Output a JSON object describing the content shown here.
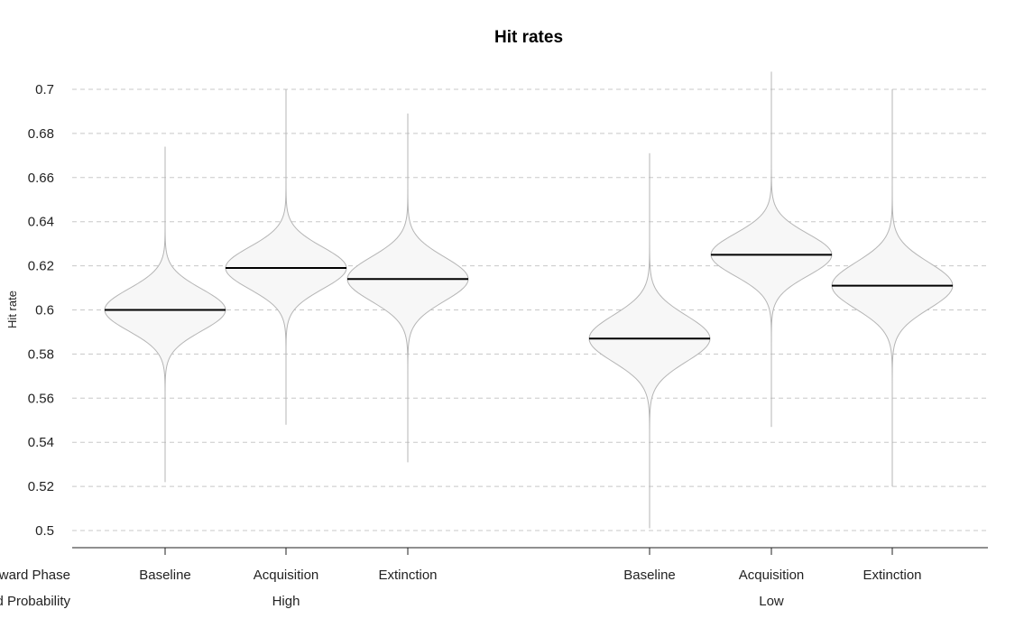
{
  "chart_data": {
    "type": "violin",
    "title": "Hit rates",
    "ylabel": "Hit rate",
    "ylim": [
      0.5,
      0.7
    ],
    "yticks": [
      0.5,
      0.52,
      0.54,
      0.56,
      0.58,
      0.6,
      0.62,
      0.64,
      0.66,
      0.68,
      0.7
    ],
    "ytick_labels": [
      "0.5",
      "0.52",
      "0.54",
      "0.56",
      "0.58",
      "0.6",
      "0.62",
      "0.64",
      "0.66",
      "0.68",
      "0.7"
    ],
    "grid": true,
    "factor_labels": [
      "Reward Phase",
      "Reward Probability"
    ],
    "groups": [
      {
        "label": "High",
        "violins": [
          {
            "label": "Baseline",
            "median": 0.6,
            "min": 0.522,
            "max": 0.674,
            "spread": 0.0095
          },
          {
            "label": "Acquisition",
            "median": 0.619,
            "min": 0.548,
            "max": 0.7,
            "spread": 0.0095
          },
          {
            "label": "Extinction",
            "median": 0.614,
            "min": 0.531,
            "max": 0.689,
            "spread": 0.01
          }
        ]
      },
      {
        "label": "Low",
        "violins": [
          {
            "label": "Baseline",
            "median": 0.587,
            "min": 0.501,
            "max": 0.671,
            "spread": 0.0105
          },
          {
            "label": "Acquisition",
            "median": 0.625,
            "min": 0.547,
            "max": 0.708,
            "spread": 0.0095
          },
          {
            "label": "Extinction",
            "median": 0.611,
            "min": 0.52,
            "max": 0.7,
            "spread": 0.0105
          }
        ]
      }
    ]
  }
}
